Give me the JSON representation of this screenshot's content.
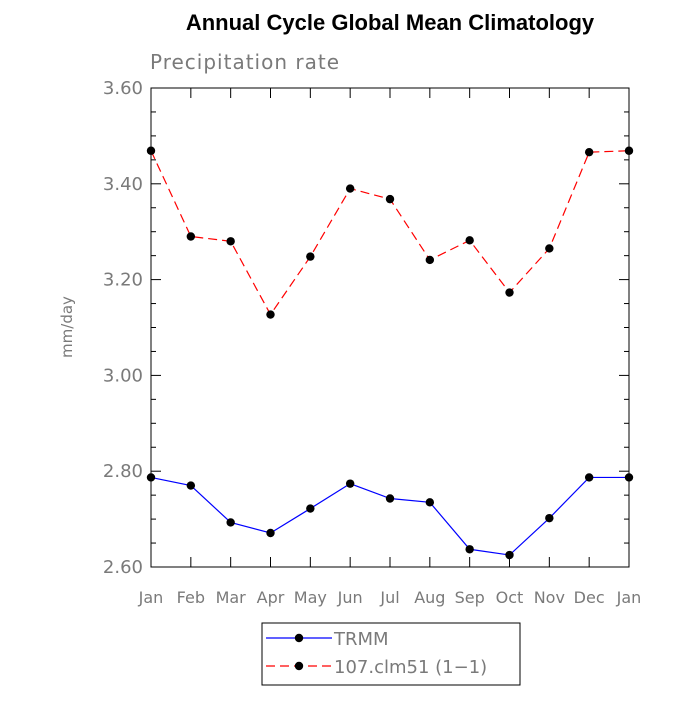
{
  "chart_data": {
    "type": "line",
    "title": "Annual Cycle Global Mean Climatology",
    "subtitle": "Precipitation rate",
    "ylabel": "mm/day",
    "xlabel": "",
    "ylim": [
      2.6,
      3.6
    ],
    "yticks": [
      "2.60",
      "2.80",
      "3.00",
      "3.20",
      "3.40",
      "3.60"
    ],
    "categories": [
      "Jan",
      "Feb",
      "Mar",
      "Apr",
      "May",
      "Jun",
      "Jul",
      "Aug",
      "Sep",
      "Oct",
      "Nov",
      "Dec",
      "Jan"
    ],
    "grid": false,
    "legend_position": "bottom-center",
    "series": [
      {
        "name": "TRMM",
        "color": "#0000ff",
        "dash": "solid",
        "values": [
          2.787,
          2.77,
          2.693,
          2.671,
          2.722,
          2.774,
          2.743,
          2.735,
          2.637,
          2.625,
          2.702,
          2.787,
          2.787
        ]
      },
      {
        "name": "107.clm51 (1−1)",
        "color": "#ff0000",
        "dash": "dashed",
        "values": [
          3.469,
          3.29,
          3.28,
          3.127,
          3.248,
          3.39,
          3.368,
          3.241,
          3.282,
          3.173,
          3.265,
          3.466,
          3.469
        ]
      }
    ]
  }
}
